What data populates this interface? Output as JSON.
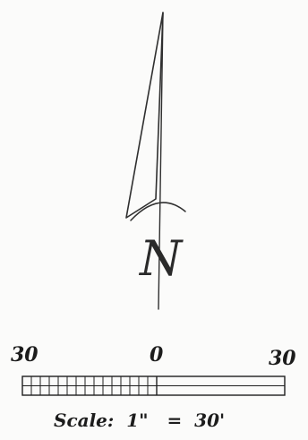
{
  "north_arrow": {
    "letter": "N"
  },
  "scale_bar": {
    "left_label": "30",
    "zero_label": "0",
    "right_label": "30",
    "caption_word": "Scale:",
    "caption_left": "1\"",
    "caption_equals": "=",
    "caption_right": "30'"
  }
}
